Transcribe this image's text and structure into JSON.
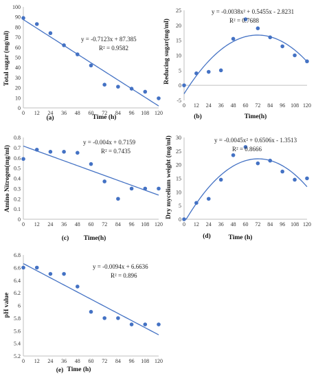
{
  "chart_data": [
    {
      "type": "scatter",
      "panel_label": "(a)",
      "xlabel": "Time (h)",
      "ylabel": "Total sugar (mg/ml)",
      "xlim": [
        0,
        120
      ],
      "ylim": [
        0,
        100
      ],
      "x_ticks": [
        0,
        12,
        24,
        36,
        48,
        60,
        72,
        84,
        96,
        108,
        120
      ],
      "y_ticks": [
        0,
        10,
        20,
        30,
        40,
        50,
        60,
        70,
        80,
        90,
        100
      ],
      "series": [
        {
          "x": [
            0,
            12,
            24,
            36,
            48,
            60,
            72,
            84,
            96,
            108,
            120
          ],
          "y": [
            89,
            83,
            74,
            62,
            53,
            42,
            23,
            21,
            19,
            16,
            9.5
          ]
        }
      ],
      "trendline": {
        "kind": "linear",
        "coeffs": [
          -0.7123,
          87.385
        ]
      },
      "equation": "y = -0.7123x + 87.385",
      "r2": "R² = 0.9582"
    },
    {
      "type": "scatter",
      "panel_label": "(b)",
      "xlabel": "Time(h)",
      "ylabel": "Reducing sugar(mg/ml)",
      "xlim": [
        0,
        120
      ],
      "ylim": [
        -5,
        25
      ],
      "x_ticks": [
        0,
        12,
        24,
        36,
        48,
        60,
        72,
        84,
        96,
        108,
        120
      ],
      "y_ticks": [
        -5,
        0,
        5,
        10,
        15,
        20,
        25
      ],
      "series": [
        {
          "x": [
            0,
            12,
            24,
            36,
            48,
            60,
            72,
            84,
            96,
            108,
            120
          ],
          "y": [
            0,
            4,
            4.5,
            5,
            15.5,
            22,
            19,
            16,
            13,
            10,
            8
          ]
        }
      ],
      "trendline": {
        "kind": "poly2",
        "coeffs": [
          -0.0038,
          0.5455,
          -2.8231
        ]
      },
      "equation": "y = -0.0038x² + 0.5455x - 2.8231",
      "r2": "R² = 0.7688"
    },
    {
      "type": "scatter",
      "panel_label": "(c)",
      "xlabel": "Time(h)",
      "ylabel": "Amino Nitrogen(mg/ml)",
      "xlim": [
        0,
        120
      ],
      "ylim": [
        0,
        0.8
      ],
      "x_ticks": [
        0,
        12,
        24,
        36,
        48,
        60,
        72,
        84,
        96,
        108,
        120
      ],
      "y_ticks": [
        0,
        0.1,
        0.2,
        0.3,
        0.4,
        0.5,
        0.6,
        0.7,
        0.8
      ],
      "series": [
        {
          "x": [
            0,
            12,
            24,
            36,
            48,
            60,
            72,
            84,
            96,
            108,
            120
          ],
          "y": [
            0.59,
            0.68,
            0.66,
            0.66,
            0.65,
            0.54,
            0.37,
            0.2,
            0.3,
            0.3,
            0.3
          ]
        }
      ],
      "trendline": {
        "kind": "linear",
        "coeffs": [
          -0.004,
          0.7159
        ]
      },
      "equation": "y = -0.004x + 0.7159",
      "r2": "R² = 0.7435"
    },
    {
      "type": "scatter",
      "panel_label": "(d)",
      "xlabel": "Time (h)",
      "ylabel": "Dry mycelium weight (mg/ml)",
      "xlim": [
        0,
        120
      ],
      "ylim": [
        0,
        30
      ],
      "x_ticks": [
        0,
        12,
        24,
        36,
        48,
        60,
        72,
        84,
        96,
        108,
        120
      ],
      "y_ticks": [
        0,
        5,
        10,
        15,
        20,
        25,
        30
      ],
      "series": [
        {
          "x": [
            0,
            12,
            24,
            36,
            48,
            60,
            72,
            84,
            96,
            108,
            120
          ],
          "y": [
            0,
            6,
            7.5,
            14.5,
            23.5,
            26.5,
            20.5,
            21.5,
            17.5,
            14.5,
            15
          ]
        }
      ],
      "trendline": {
        "kind": "poly2",
        "coeffs": [
          -0.0045,
          0.6506,
          -1.3513
        ]
      },
      "equation": "y = -0.0045x² + 0.6506x - 1.3513",
      "r2": "R² = 0.8666"
    },
    {
      "type": "scatter",
      "panel_label": "(e)",
      "xlabel": "Time (h)",
      "ylabel": "pH value",
      "xlim": [
        0,
        120
      ],
      "ylim": [
        5.2,
        6.8
      ],
      "x_ticks": [
        0,
        12,
        24,
        36,
        48,
        60,
        72,
        84,
        96,
        108,
        120
      ],
      "y_ticks": [
        5.2,
        5.4,
        5.6,
        5.8,
        6,
        6.2,
        6.4,
        6.6,
        6.8
      ],
      "y_tick_labels": [
        "5.2",
        "5.4",
        "5.6",
        "5.8",
        "6",
        "6.2",
        "6.4",
        "6.6",
        "6.8"
      ],
      "series": [
        {
          "x": [
            0,
            12,
            24,
            36,
            48,
            60,
            72,
            84,
            96,
            108,
            120
          ],
          "y": [
            6.6,
            6.6,
            6.5,
            6.5,
            6.3,
            5.9,
            5.8,
            5.8,
            5.7,
            5.7,
            5.7
          ]
        }
      ],
      "trendline": {
        "kind": "linear",
        "coeffs": [
          -0.0094,
          6.6636
        ]
      },
      "equation": "y = -0.0094x + 6.6636",
      "r2": "R² = 0.896"
    }
  ]
}
